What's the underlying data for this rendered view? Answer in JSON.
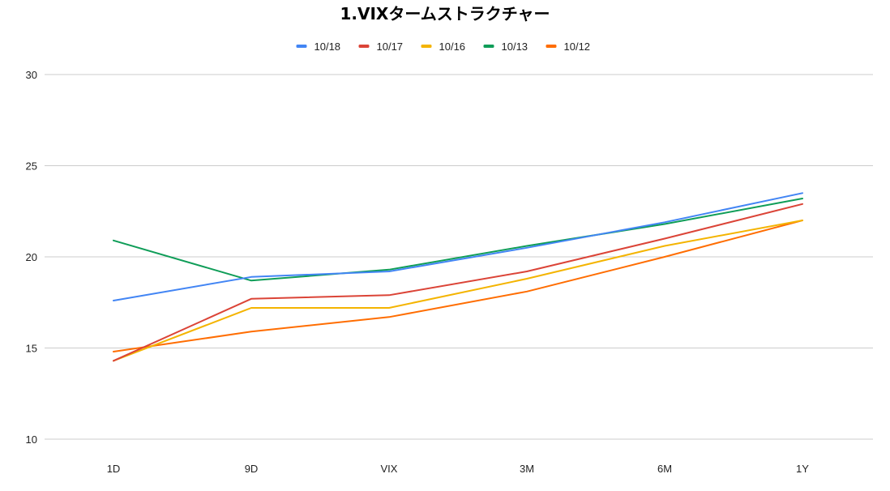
{
  "chart_data": {
    "type": "line",
    "title": "1.VIXタームストラクチャー",
    "xlabel": "",
    "ylabel": "",
    "categories": [
      "1D",
      "9D",
      "VIX",
      "3M",
      "6M",
      "1Y"
    ],
    "ylim": [
      10,
      30
    ],
    "yticks": [
      10,
      15,
      20,
      25,
      30
    ],
    "grid": true,
    "legend_position": "top",
    "series": [
      {
        "name": "10/18",
        "color": "#4285f4",
        "values": [
          17.6,
          18.9,
          19.2,
          20.5,
          21.9,
          23.5
        ]
      },
      {
        "name": "10/17",
        "color": "#db4437",
        "values": [
          14.3,
          17.7,
          17.9,
          19.2,
          21.0,
          22.9
        ]
      },
      {
        "name": "10/16",
        "color": "#f4b400",
        "values": [
          14.3,
          17.2,
          17.2,
          18.8,
          20.6,
          22.0
        ]
      },
      {
        "name": "10/13",
        "color": "#0f9d58",
        "values": [
          20.9,
          18.7,
          19.3,
          20.6,
          21.8,
          23.2
        ]
      },
      {
        "name": "10/12",
        "color": "#ff6d01",
        "values": [
          14.8,
          15.9,
          16.7,
          18.1,
          20.0,
          22.0
        ]
      }
    ]
  }
}
